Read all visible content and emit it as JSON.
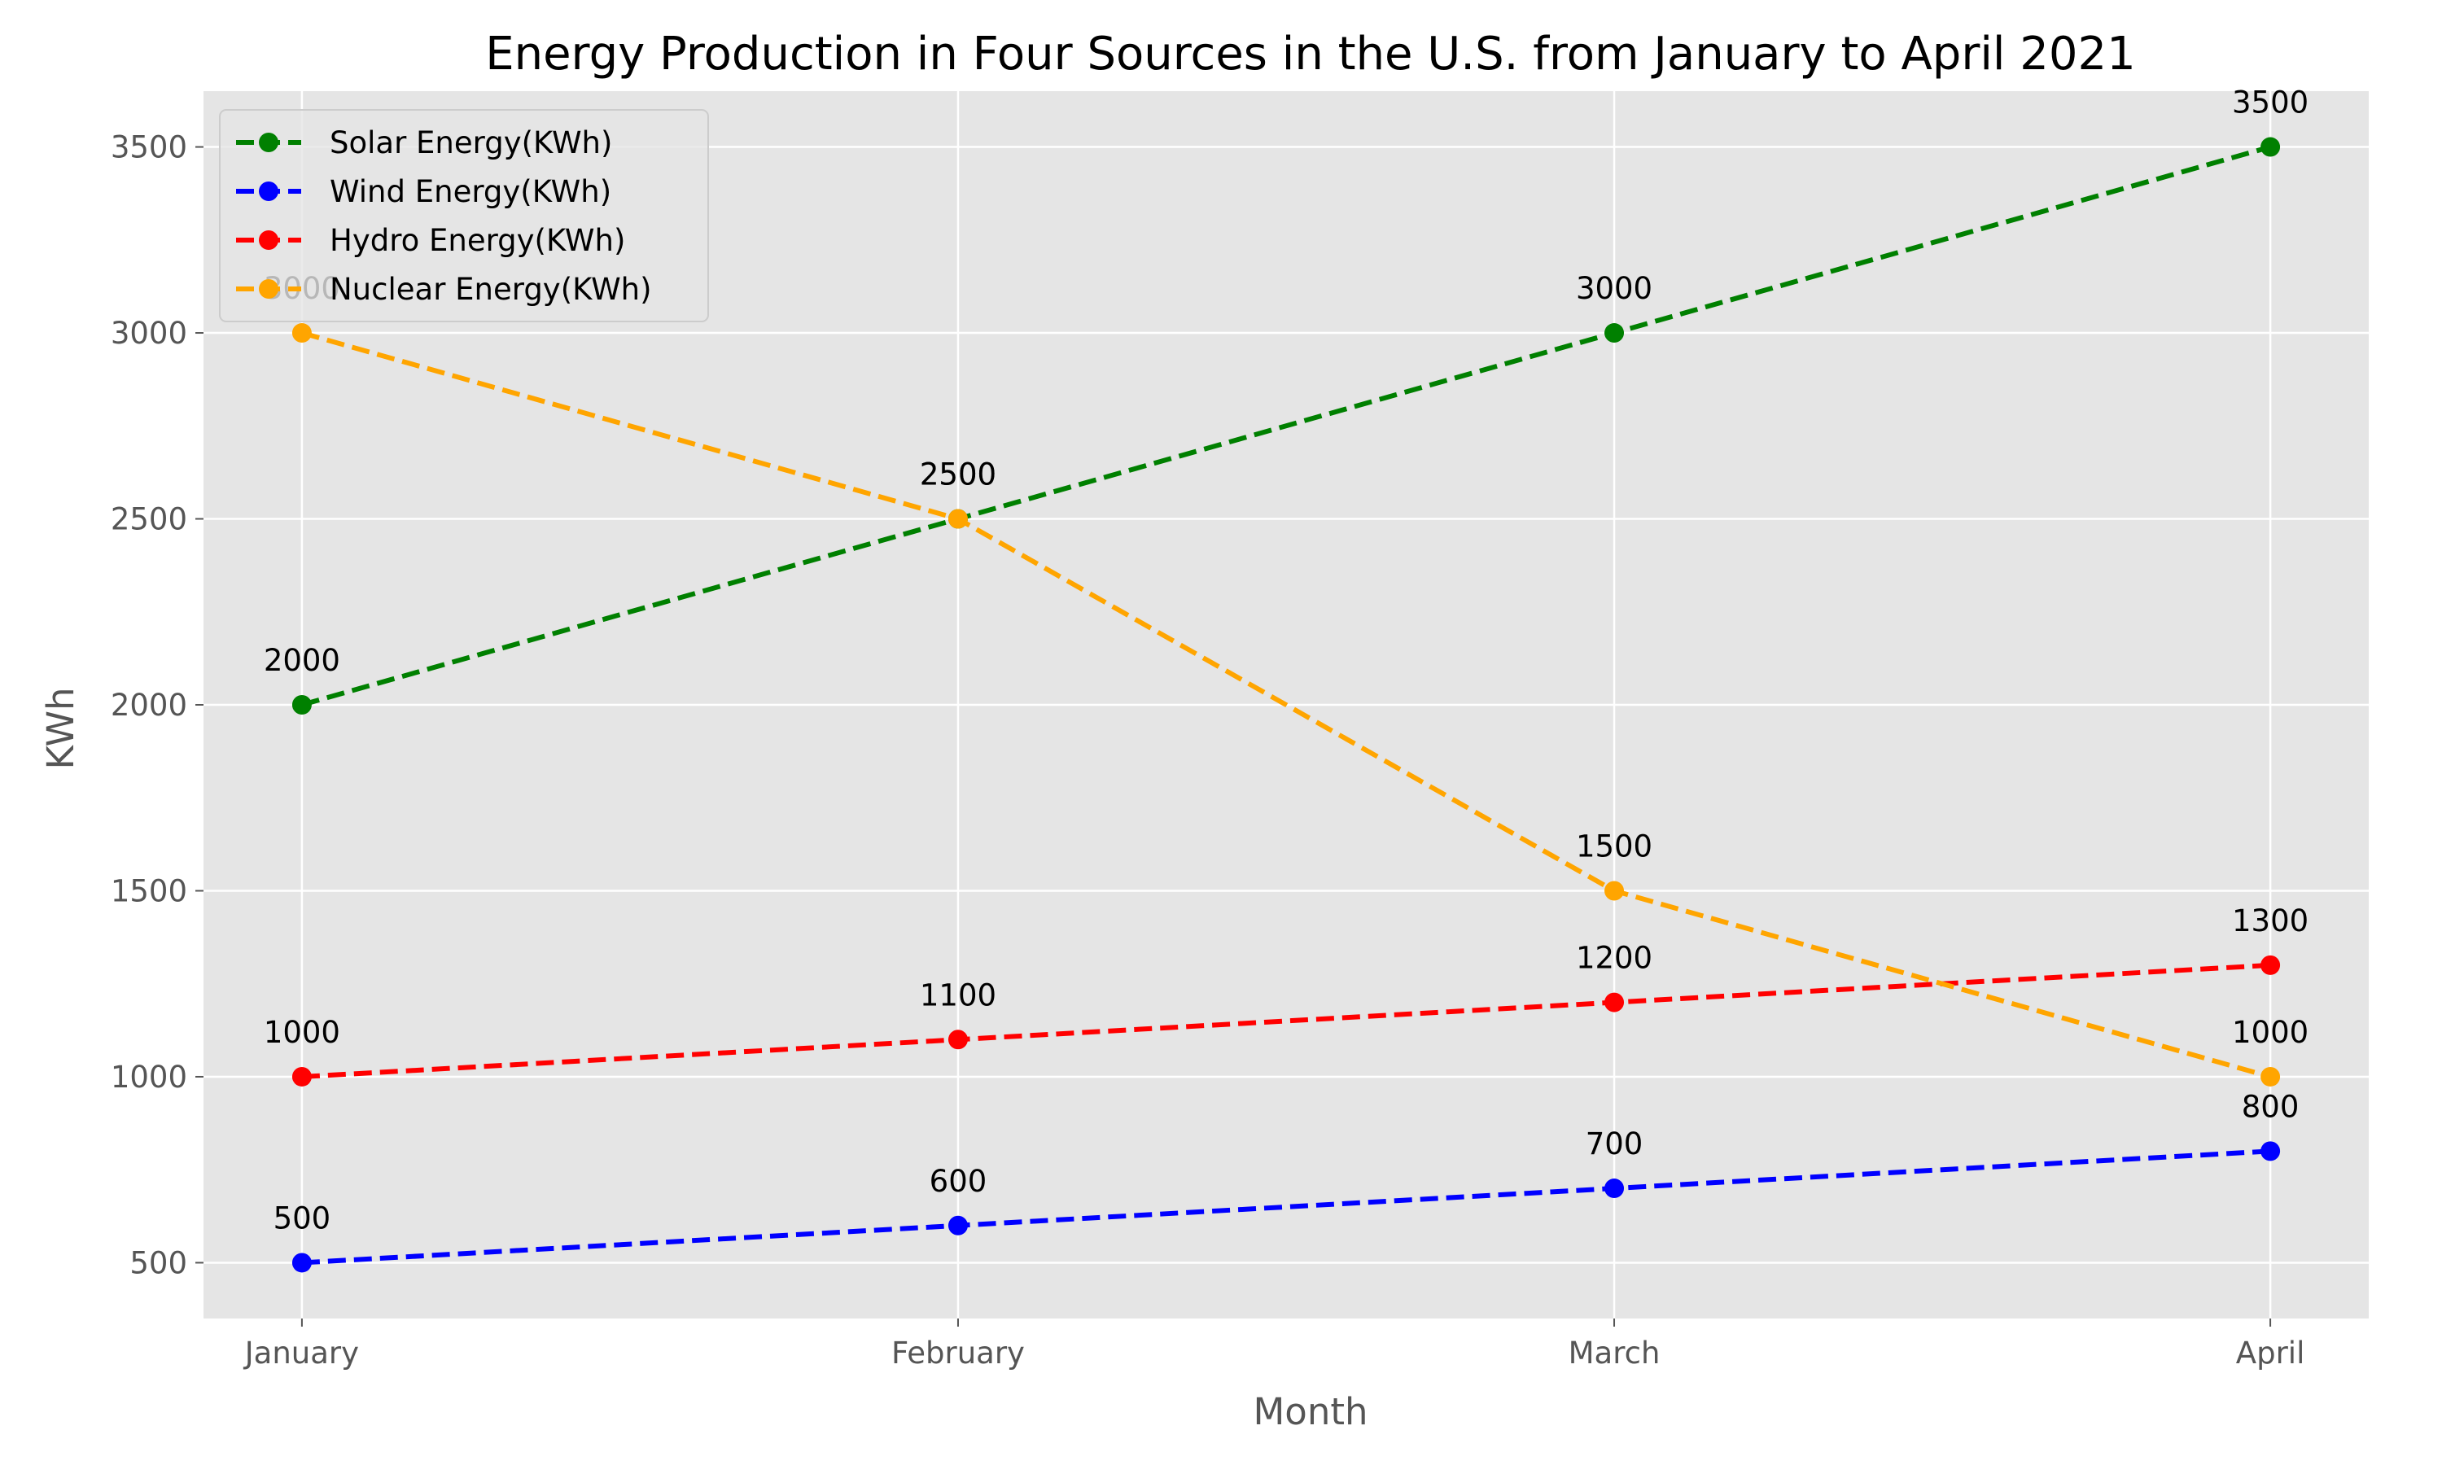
{
  "chart_data": {
    "type": "line",
    "title": "Energy Production in Four Sources in the U.S. from January to April 2021",
    "xlabel": "Month",
    "ylabel": "KWh",
    "categories": [
      "January",
      "February",
      "March",
      "April"
    ],
    "ylim": [
      350,
      3650
    ],
    "yticks": [
      500,
      1000,
      1500,
      2000,
      2500,
      3000,
      3500
    ],
    "grid": true,
    "legend_position": "top-left",
    "series": [
      {
        "name": "Solar Energy(KWh)",
        "color": "#008000",
        "values": [
          2000,
          2500,
          3000,
          3500
        ]
      },
      {
        "name": "Wind Energy(KWh)",
        "color": "#0000ff",
        "values": [
          500,
          600,
          700,
          800
        ]
      },
      {
        "name": "Hydro Energy(KWh)",
        "color": "#ff0000",
        "values": [
          1000,
          1100,
          1200,
          1300
        ]
      },
      {
        "name": "Nuclear Energy(KWh)",
        "color": "#ffa500",
        "values": [
          3000,
          2500,
          1500,
          1000
        ]
      }
    ]
  }
}
